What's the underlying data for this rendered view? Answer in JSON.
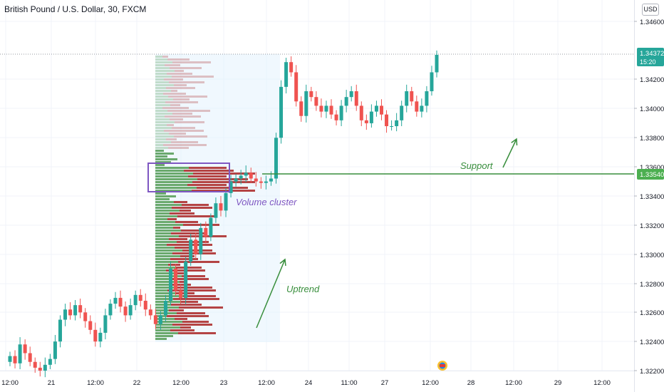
{
  "header": {
    "title": "British Pound / U.S. Dollar, 30, FXCM",
    "currency_button": "USD"
  },
  "chart_data": {
    "type": "candlestick",
    "symbol": "GBPUSD",
    "interval": "30",
    "source": "FXCM",
    "y_axis": {
      "ticks": [
        "1.34600",
        "1.34200",
        "1.34000",
        "1.33800",
        "1.33600",
        "1.33400",
        "1.33200",
        "1.33000",
        "1.32800",
        "1.32600",
        "1.32400",
        "1.32200"
      ],
      "range": [
        1.3218,
        1.3472
      ]
    },
    "x_axis": {
      "ticks": [
        "12:00",
        "21",
        "12:00",
        "22",
        "12:00",
        "23",
        "12:00",
        "24",
        "11:00",
        "27",
        "12:00",
        "28",
        "12:00",
        "29",
        "12:00"
      ]
    },
    "price_labels": {
      "last_price": "1.34372",
      "countdown": "15:20",
      "support_price": "1.33540",
      "last_color": "#26a69a",
      "support_color": "#4caf50"
    },
    "annotations": {
      "support": "Support",
      "uptrend": "Uptrend",
      "volume_cluster": "Volume cluster"
    },
    "colors": {
      "up": "#26a69a",
      "down": "#ef5350",
      "accent_green": "#388e3c",
      "accent_purple": "#7e57c2",
      "highlight": "#e3f2fd"
    },
    "close_path": [
      1.323,
      1.3225,
      1.3238,
      1.3232,
      1.3226,
      1.3222,
      1.322,
      1.3224,
      1.3228,
      1.324,
      1.3255,
      1.3262,
      1.3258,
      1.3265,
      1.326,
      1.3254,
      1.3248,
      1.324,
      1.3246,
      1.3258,
      1.3266,
      1.327,
      1.3264,
      1.3258,
      1.3265,
      1.3272,
      1.3268,
      1.3262,
      1.3258,
      1.3252,
      1.3258,
      1.3268,
      1.329,
      1.3275,
      1.327,
      1.3295,
      1.331,
      1.33,
      1.3318,
      1.3312,
      1.3325,
      1.3335,
      1.333,
      1.3342,
      1.335,
      1.3352,
      1.3354,
      1.3356,
      1.3352,
      1.335,
      1.3349,
      1.335,
      1.3352,
      1.338,
      1.3415,
      1.3432,
      1.3425,
      1.3405,
      1.3395,
      1.3412,
      1.3408,
      1.3402,
      1.3398,
      1.3402,
      1.3396,
      1.3392,
      1.3402,
      1.3408,
      1.3412,
      1.3402,
      1.3392,
      1.339,
      1.3398,
      1.3402,
      1.3396,
      1.3388,
      1.3388,
      1.3392,
      1.3402,
      1.3412,
      1.3405,
      1.3398,
      1.3402,
      1.3412,
      1.3425,
      1.3437
    ]
  }
}
